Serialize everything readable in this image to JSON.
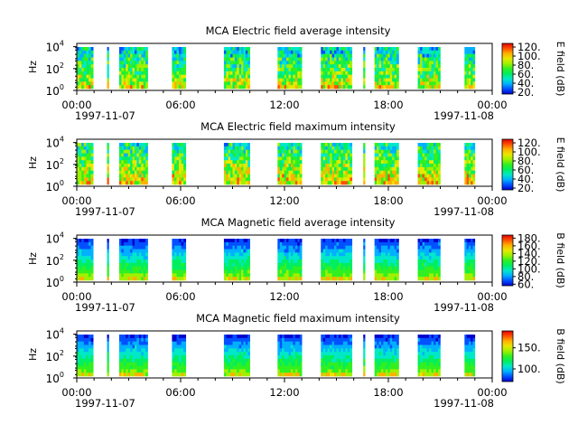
{
  "chart_data": [
    {
      "type": "heatmap",
      "title": "MCA  Electric field average intensity",
      "ylabel": "Hz",
      "yscale": "log",
      "ylim": [
        1,
        20000
      ],
      "yticks": [
        "10^0",
        "10^2",
        "10^4"
      ],
      "xlim": [
        "1997-11-07 00:00",
        "1997-11-08 00:00"
      ],
      "xticks": [
        "00:00",
        "06:00",
        "12:00",
        "18:00",
        "00:00"
      ],
      "xdates": [
        "1997-11-07",
        "1997-11-08"
      ],
      "colorbar": {
        "label": "E field (dB)",
        "ticks": [
          "20.",
          "40.",
          "60.",
          "80.",
          "100.",
          "120."
        ],
        "range": [
          16,
          128
        ]
      }
    },
    {
      "type": "heatmap",
      "title": "MCA  Electric field maximum intensity",
      "ylabel": "Hz",
      "yscale": "log",
      "ylim": [
        1,
        20000
      ],
      "yticks": [
        "10^0",
        "10^2",
        "10^4"
      ],
      "xlim": [
        "1997-11-07 00:00",
        "1997-11-08 00:00"
      ],
      "xticks": [
        "00:00",
        "06:00",
        "12:00",
        "18:00",
        "00:00"
      ],
      "xdates": [
        "1997-11-07",
        "1997-11-08"
      ],
      "colorbar": {
        "label": "E field (dB)",
        "ticks": [
          "20.",
          "40.",
          "60.",
          "80.",
          "100.",
          "120."
        ],
        "range": [
          16,
          128
        ]
      }
    },
    {
      "type": "heatmap",
      "title": "MCA  Magnetic field average intensity",
      "ylabel": "Hz",
      "yscale": "log",
      "ylim": [
        1,
        20000
      ],
      "yticks": [
        "10^0",
        "10^2",
        "10^4"
      ],
      "xlim": [
        "1997-11-07 00:00",
        "1997-11-08 00:00"
      ],
      "xticks": [
        "00:00",
        "06:00",
        "12:00",
        "18:00",
        "00:00"
      ],
      "xdates": [
        "1997-11-07",
        "1997-11-08"
      ],
      "colorbar": {
        "label": "B field (dB)",
        "ticks": [
          "60.",
          "80.",
          "100.",
          "120.",
          "140.",
          "160.",
          "180."
        ],
        "range": [
          56,
          188
        ]
      }
    },
    {
      "type": "heatmap",
      "title": "MCA  Magnetic field maximum intensity",
      "ylabel": "Hz",
      "yscale": "log",
      "ylim": [
        1,
        20000
      ],
      "yticks": [
        "10^0",
        "10^2",
        "10^4"
      ],
      "xlim": [
        "1997-11-07 00:00",
        "1997-11-08 00:00"
      ],
      "xticks": [
        "00:00",
        "06:00",
        "12:00",
        "18:00",
        "00:00"
      ],
      "xdates": [
        "1997-11-07",
        "1997-11-08"
      ],
      "colorbar": {
        "label": "B field (dB)",
        "ticks": [
          "100.",
          "150."
        ],
        "range": [
          70,
          190
        ]
      }
    }
  ],
  "data_segments_hours": [
    [
      0.0,
      0.95
    ],
    [
      1.75,
      1.85
    ],
    [
      2.45,
      4.1
    ],
    [
      5.5,
      6.3
    ],
    [
      8.5,
      10.0
    ],
    [
      11.6,
      13.0
    ],
    [
      14.1,
      15.9
    ],
    [
      16.55,
      16.65
    ],
    [
      17.2,
      18.6
    ],
    [
      19.7,
      21.0
    ],
    [
      22.4,
      23.0
    ]
  ],
  "colormap": [
    "#0000cc",
    "#0050ff",
    "#00b0ff",
    "#00e8c8",
    "#00ee60",
    "#30f020",
    "#a0f000",
    "#e8e800",
    "#ffb000",
    "#ff5000",
    "#e00000"
  ]
}
